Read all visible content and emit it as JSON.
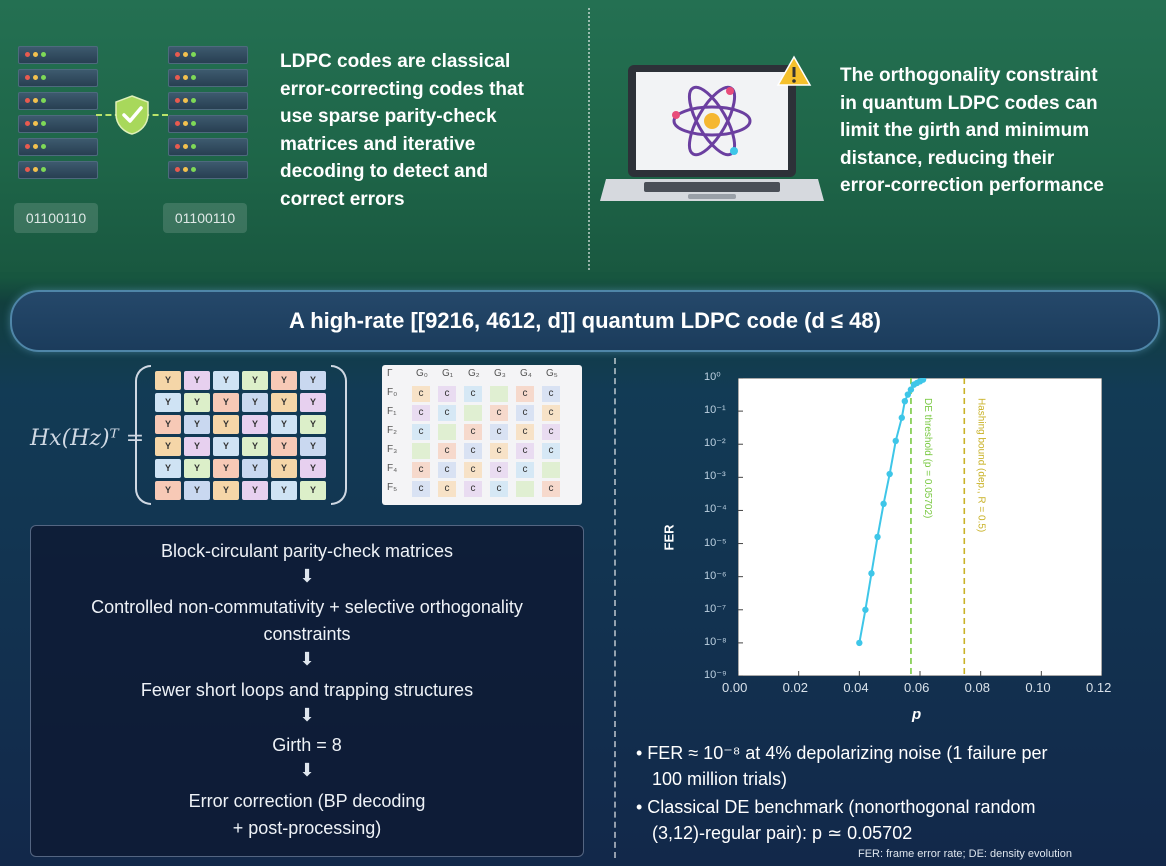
{
  "top": {
    "bits_left": "01100110",
    "bits_right": "01100110",
    "ldpc_paragraph": [
      "LDPC codes are classical",
      "error-correcting codes that",
      "use sparse parity-check",
      "matrices and iterative",
      "decoding to detect and",
      "correct errors"
    ],
    "constraint_paragraph": [
      "The orthogonality constraint",
      "in quantum LDPC codes can",
      "limit the girth and minimum",
      "distance, reducing their",
      "error-correction performance"
    ],
    "icons": [
      "server-rack-icon",
      "shield-check-icon",
      "laptop-icon",
      "atom-icon",
      "warning-icon"
    ]
  },
  "banner": {
    "title": "A high-rate [[9216, 4612, d]] quantum LDPC code (d ≤ 48)"
  },
  "matrix": {
    "label": "Hx(Hz)ᵀ =",
    "cell_label": "Y",
    "table_corner": "Γ",
    "col_headers": [
      "G₀",
      "G₁",
      "G₂",
      "G₃",
      "G₄",
      "G₅"
    ],
    "row_labels": [
      "F₀",
      "F₁",
      "F₂",
      "F₃",
      "F₄",
      "F₅"
    ],
    "c_symbol": "c"
  },
  "flow": {
    "steps": [
      "Block-circulant parity-check matrices",
      "Controlled non-commutativity + selective orthogonality",
      "constraints",
      "Fewer short loops and trapping structures",
      "Girth = 8",
      "Error correction (BP decoding",
      "+ post-processing)"
    ],
    "arrow": "⬇"
  },
  "chart_data": {
    "type": "line",
    "xlabel": "p",
    "ylabel": "FER",
    "xlim": [
      0.0,
      0.12
    ],
    "ylim_log10": [
      -9,
      0
    ],
    "x_ticks": [
      "0.00",
      "0.02",
      "0.04",
      "0.06",
      "0.08",
      "0.10",
      "0.12"
    ],
    "y_ticks": [
      "10⁰",
      "10⁻¹",
      "10⁻²",
      "10⁻³",
      "10⁻⁴",
      "10⁻⁵",
      "10⁻⁶",
      "10⁻⁷",
      "10⁻⁸",
      "10⁻⁹"
    ],
    "series": [
      {
        "color": "#3ec6e8",
        "x": [
          0.04,
          0.042,
          0.044,
          0.046,
          0.048,
          0.05,
          0.052,
          0.054,
          0.055,
          0.056,
          0.057,
          0.058,
          0.059,
          0.06,
          0.061
        ],
        "log10_y": [
          -8.0,
          -7.0,
          -5.9,
          -4.8,
          -3.8,
          -2.9,
          -1.9,
          -1.2,
          -0.7,
          -0.5,
          -0.35,
          -0.2,
          -0.15,
          -0.1,
          -0.05
        ]
      }
    ],
    "vlines": [
      {
        "x": 0.05702,
        "label": "DE threshold (p = 0.05702)",
        "color": "#7ac943"
      },
      {
        "x": 0.0746,
        "label": "Hashing bound (dep., R = 0.5)",
        "color": "#c9b227"
      }
    ],
    "grid": false
  },
  "bullets": {
    "b1_line1": "• FER ≈ 10⁻⁸ at 4% depolarizing noise (1 failure per",
    "b1_line2": "100 million trials)",
    "b2_line1": "• Classical DE benchmark (nonorthogonal random",
    "b2_line2": "(3,12)-regular pair): p ≃ 0.05702",
    "footnote": "FER: frame error rate; DE: density evolution"
  }
}
